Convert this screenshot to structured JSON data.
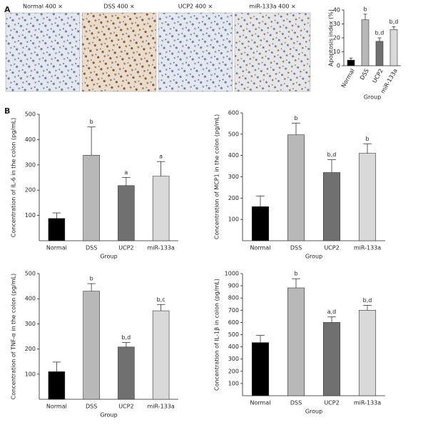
{
  "panels": [
    "A",
    "B"
  ],
  "image_captions": [
    "Normal 400 ×",
    "DSS 400 ×",
    "UCP2 400 ×",
    "miR-133a 400 ×"
  ],
  "chart_data": [
    {
      "type": "bar",
      "categories": [
        "Normal",
        "DSS",
        "UCP2",
        "miR-133a"
      ],
      "values": [
        4,
        33,
        17.5,
        26
      ],
      "errors": [
        1.5,
        4,
        2.5,
        2
      ],
      "annotations": [
        null,
        "b",
        "b,d",
        "b,d"
      ],
      "colors": [
        "#000000",
        "#b8b8b8",
        "#707070",
        "#d9d9d9"
      ],
      "ylabel": "Apoptosis index (%)",
      "xlabel": "Group",
      "ylim": [
        0,
        40
      ],
      "yticks": [
        0,
        10,
        20,
        30,
        40
      ]
    },
    {
      "type": "bar",
      "categories": [
        "Normal",
        "DSS",
        "UCP2",
        "miR-133a"
      ],
      "values": [
        88,
        338,
        218,
        255
      ],
      "errors": [
        22,
        112,
        32,
        58
      ],
      "annotations": [
        null,
        "b",
        "a",
        "a"
      ],
      "colors": [
        "#000000",
        "#b8b8b8",
        "#707070",
        "#d9d9d9"
      ],
      "ylabel": "Concentration of IL-6 in the colon (pg/mL)",
      "xlabel": "Group",
      "ylim": [
        0,
        500
      ],
      "yticks": [
        100,
        200,
        300,
        400,
        500
      ]
    },
    {
      "type": "bar",
      "categories": [
        "Normal",
        "DSS",
        "UCP2",
        "miR-133a"
      ],
      "values": [
        160,
        497,
        320,
        410
      ],
      "errors": [
        50,
        55,
        60,
        45
      ],
      "annotations": [
        null,
        "b",
        "b,d",
        "b"
      ],
      "colors": [
        "#000000",
        "#b8b8b8",
        "#707070",
        "#d9d9d9"
      ],
      "ylabel": "Concentration of MCP1 in the colon (pg/mL)",
      "xlabel": "Group",
      "ylim": [
        0,
        600
      ],
      "yticks": [
        100,
        200,
        300,
        400,
        500,
        600
      ]
    },
    {
      "type": "bar",
      "categories": [
        "Normal",
        "DSS",
        "UCP2",
        "miR-133a"
      ],
      "values": [
        110,
        430,
        208,
        352
      ],
      "errors": [
        38,
        30,
        18,
        25
      ],
      "annotations": [
        null,
        "b",
        "b,d",
        "b,c"
      ],
      "colors": [
        "#000000",
        "#b8b8b8",
        "#707070",
        "#d9d9d9"
      ],
      "ylabel": "Concentration of TNF-α in the colon (pg/mL)",
      "xlabel": "Group",
      "ylim": [
        0,
        500
      ],
      "yticks": [
        100,
        200,
        300,
        400,
        500
      ]
    },
    {
      "type": "bar",
      "categories": [
        "Normal",
        "DSS",
        "UCP2",
        "miR-133a"
      ],
      "values": [
        435,
        883,
        600,
        700
      ],
      "errors": [
        60,
        75,
        45,
        40
      ],
      "annotations": [
        null,
        "b",
        "a,d",
        "b,d"
      ],
      "colors": [
        "#000000",
        "#b8b8b8",
        "#707070",
        "#d9d9d9"
      ],
      "ylabel": "Concentration of IL-1β in colon (pg/mL)",
      "xlabel": "Group",
      "ylim": [
        0,
        1000
      ],
      "yticks": [
        100,
        200,
        300,
        400,
        500,
        600,
        700,
        800,
        900,
        1000
      ]
    }
  ]
}
